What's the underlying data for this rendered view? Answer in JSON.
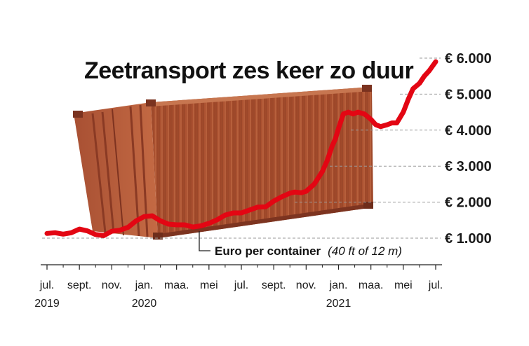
{
  "chart_data": {
    "type": "line",
    "title": "Zeetransport zes keer zo duur",
    "annotation": {
      "label": "Euro per container",
      "note": "(40 ft of 12 m)"
    },
    "y_ticks": [
      "€ 1.000",
      "€ 2.000",
      "€ 3.000",
      "€ 4.000",
      "€ 5.000",
      "€ 6.000"
    ],
    "y_tick_values": [
      1000,
      2000,
      3000,
      4000,
      5000,
      6000
    ],
    "ylim": [
      1000,
      6000
    ],
    "x_ticks": [
      "jul.",
      "sept.",
      "nov.",
      "jan.",
      "maa.",
      "mei",
      "jul.",
      "sept.",
      "nov.",
      "jan.",
      "maa.",
      "mei",
      "jul."
    ],
    "x_tick_months": [
      0,
      2,
      4,
      6,
      8,
      10,
      12,
      14,
      16,
      18,
      20,
      22,
      24
    ],
    "year_labels": [
      {
        "label": "2019",
        "month": 0
      },
      {
        "label": "2020",
        "month": 6
      },
      {
        "label": "2021",
        "month": 18
      }
    ],
    "xlim": [
      0,
      24
    ],
    "grid": "dashed horizontal lines at labeled values",
    "line_color": "#e30613",
    "series": [
      {
        "x_month": [
          0,
          0.5,
          1,
          1.5,
          2,
          2.5,
          3,
          3.5,
          4,
          4.5,
          5,
          5.5,
          6,
          6.5,
          7,
          7.5,
          8,
          8.5,
          9,
          9.5,
          10,
          10.5,
          11,
          11.5,
          12,
          12.5,
          13,
          13.5,
          14,
          14.5,
          15,
          15.3,
          15.7,
          16,
          16.5,
          17,
          17.3,
          17.6,
          17.8,
          18,
          18.3,
          18.6,
          18.9,
          19.2,
          19.6,
          20,
          20.3,
          20.6,
          21,
          21.3,
          21.6,
          22,
          22.3,
          22.6,
          23,
          23.3,
          23.6,
          24
        ],
        "y_value": [
          1130,
          1150,
          1110,
          1150,
          1250,
          1200,
          1100,
          1070,
          1190,
          1220,
          1300,
          1480,
          1600,
          1620,
          1480,
          1390,
          1370,
          1370,
          1310,
          1340,
          1410,
          1510,
          1640,
          1700,
          1700,
          1780,
          1860,
          1870,
          2030,
          2150,
          2250,
          2280,
          2260,
          2300,
          2500,
          2850,
          3150,
          3550,
          3750,
          4050,
          4450,
          4500,
          4450,
          4500,
          4450,
          4300,
          4150,
          4100,
          4150,
          4200,
          4200,
          4500,
          4850,
          5150,
          5300,
          5500,
          5650,
          5900
        ]
      }
    ]
  }
}
